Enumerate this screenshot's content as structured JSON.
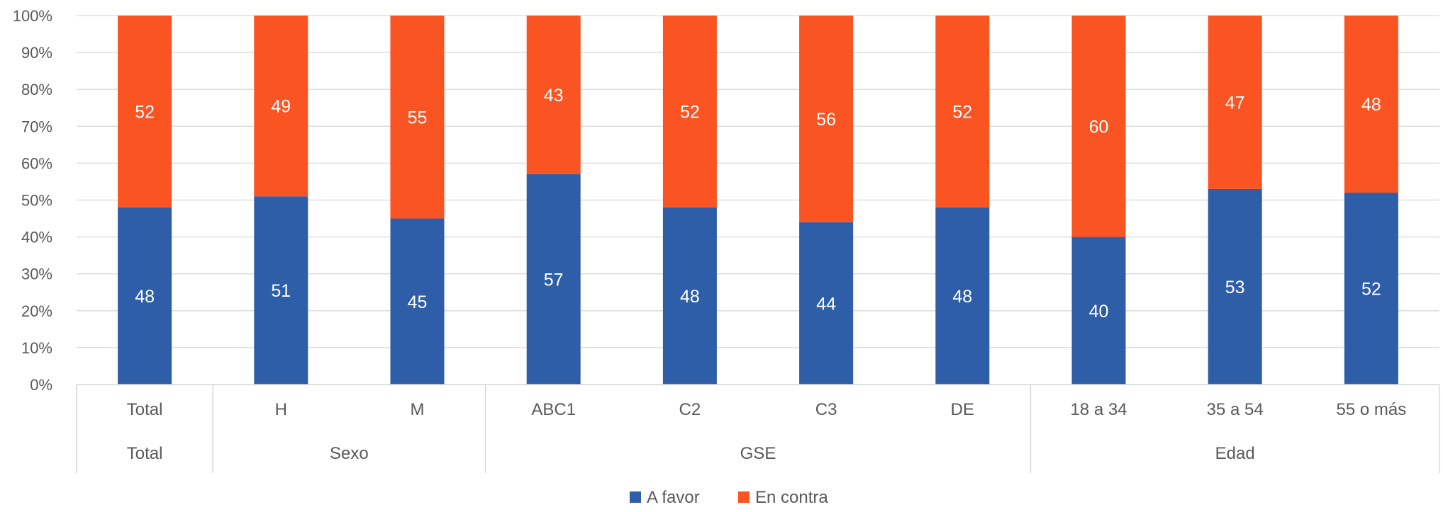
{
  "chart_data": {
    "type": "bar",
    "stacked": true,
    "percent_stacked": true,
    "categories": [
      "Total",
      "H",
      "M",
      "ABC1",
      "C2",
      "C3",
      "DE",
      "18 a 34",
      "35 a 54",
      "55 o más"
    ],
    "groups": [
      {
        "label": "Total",
        "start": 0,
        "end": 0
      },
      {
        "label": "Sexo",
        "start": 1,
        "end": 2
      },
      {
        "label": "GSE",
        "start": 3,
        "end": 6
      },
      {
        "label": "Edad",
        "start": 7,
        "end": 9
      }
    ],
    "series": [
      {
        "name": "A favor",
        "color": "#2e5ea8",
        "values": [
          48,
          51,
          45,
          57,
          48,
          44,
          48,
          40,
          53,
          52
        ]
      },
      {
        "name": "En contra",
        "color": "#fa5422",
        "values": [
          52,
          49,
          55,
          43,
          52,
          56,
          52,
          60,
          47,
          48
        ]
      }
    ],
    "ylim": [
      0,
      100
    ],
    "y_ticks": [
      "0%",
      "10%",
      "20%",
      "30%",
      "40%",
      "50%",
      "60%",
      "70%",
      "80%",
      "90%",
      "100%"
    ],
    "grid": true,
    "legend_position": "bottom"
  }
}
